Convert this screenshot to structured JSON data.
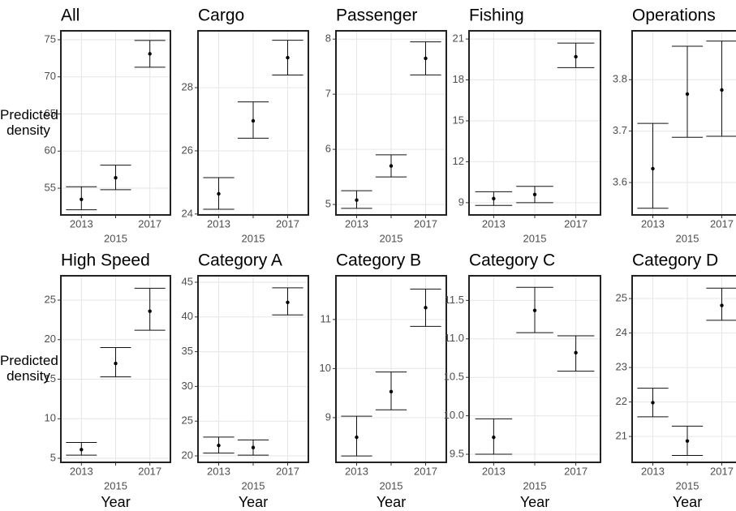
{
  "chart_data": [
    {
      "type": "errorbar",
      "title": "All",
      "ylabel": "Predicted density",
      "categories": [
        "2013",
        "2015",
        "2017"
      ],
      "values": [
        53.5,
        56.4,
        73.1
      ],
      "lower": [
        52.1,
        54.8,
        71.3
      ],
      "upper": [
        55.2,
        58.1,
        74.9
      ],
      "ylim": [
        51.4,
        76.2
      ],
      "yticks": [
        55,
        60,
        65,
        70,
        75
      ]
    },
    {
      "type": "errorbar",
      "title": "Cargo",
      "categories": [
        "2013",
        "2015",
        "2017"
      ],
      "values": [
        24.64,
        26.95,
        28.95
      ],
      "lower": [
        24.15,
        26.4,
        28.4
      ],
      "upper": [
        25.15,
        27.55,
        29.5
      ],
      "ylim": [
        23.97,
        29.8
      ],
      "yticks": [
        24,
        26,
        28
      ]
    },
    {
      "type": "errorbar",
      "title": "Passenger",
      "categories": [
        "2013",
        "2015",
        "2017"
      ],
      "values": [
        5.08,
        5.7,
        7.65
      ],
      "lower": [
        4.93,
        5.5,
        7.35
      ],
      "upper": [
        5.25,
        5.9,
        7.95
      ],
      "ylim": [
        4.81,
        8.15
      ],
      "yticks": [
        5,
        6,
        7,
        8
      ]
    },
    {
      "type": "errorbar",
      "title": "Fishing",
      "categories": [
        "2013",
        "2015",
        "2017"
      ],
      "values": [
        9.3,
        9.6,
        19.7
      ],
      "lower": [
        8.8,
        9.0,
        18.9
      ],
      "upper": [
        9.8,
        10.2,
        20.7
      ],
      "ylim": [
        8.1,
        21.6
      ],
      "yticks": [
        9,
        12,
        15,
        18,
        21
      ]
    },
    {
      "type": "errorbar",
      "title": "Operations",
      "categories": [
        "2013",
        "2015",
        "2017"
      ],
      "values": [
        3.627,
        3.772,
        3.78
      ],
      "lower": [
        3.55,
        3.688,
        3.69
      ],
      "upper": [
        3.715,
        3.865,
        3.875
      ],
      "ylim": [
        3.537,
        3.895
      ],
      "yticks": [
        3.6,
        3.7,
        3.8
      ]
    },
    {
      "type": "errorbar",
      "title": "High Speed",
      "ylabel": "Predicted density",
      "xlabel": "Year",
      "categories": [
        "2013",
        "2015",
        "2017"
      ],
      "values": [
        6.1,
        17.0,
        23.6
      ],
      "lower": [
        5.4,
        15.3,
        21.2
      ],
      "upper": [
        7.0,
        19.0,
        26.5
      ],
      "ylim": [
        4.49,
        28.08
      ],
      "yticks": [
        5,
        10,
        15,
        20,
        25
      ]
    },
    {
      "type": "errorbar",
      "title": "Category A",
      "xlabel": "Year",
      "categories": [
        "2013",
        "2015",
        "2017"
      ],
      "values": [
        21.5,
        21.2,
        42.1
      ],
      "lower": [
        20.4,
        20.1,
        40.3
      ],
      "upper": [
        22.7,
        22.3,
        44.2
      ],
      "ylim": [
        19.07,
        45.93
      ],
      "yticks": [
        20,
        25,
        30,
        35,
        40,
        45
      ]
    },
    {
      "type": "errorbar",
      "title": "Category B",
      "xlabel": "Year",
      "categories": [
        "2013",
        "2015",
        "2017"
      ],
      "values": [
        8.6,
        9.53,
        11.24
      ],
      "lower": [
        8.22,
        9.16,
        10.86
      ],
      "upper": [
        9.03,
        9.93,
        11.62
      ],
      "ylim": [
        8.09,
        11.89
      ],
      "yticks": [
        9,
        10,
        11
      ]
    },
    {
      "type": "errorbar",
      "title": "Category C",
      "xlabel": "Year",
      "categories": [
        "2013",
        "2015",
        "2017"
      ],
      "values": [
        9.72,
        11.37,
        10.82
      ],
      "lower": [
        9.5,
        11.08,
        10.58
      ],
      "upper": [
        9.96,
        11.67,
        11.04
      ],
      "ylim": [
        9.395,
        11.82
      ],
      "yticks": [
        9.5,
        {
          "value": 10,
          "label": "10.0"
        },
        10.5,
        {
          "value": 11,
          "label": "11.0"
        },
        11.5
      ]
    },
    {
      "type": "errorbar",
      "title": "Category D",
      "xlabel": "Year",
      "categories": [
        "2013",
        "2015",
        "2017"
      ],
      "values": [
        21.98,
        20.87,
        24.8
      ],
      "lower": [
        21.57,
        20.45,
        24.37
      ],
      "upper": [
        22.4,
        21.3,
        25.3
      ],
      "ylim": [
        20.25,
        25.66
      ],
      "yticks": [
        21,
        22,
        23,
        24,
        25
      ]
    }
  ]
}
